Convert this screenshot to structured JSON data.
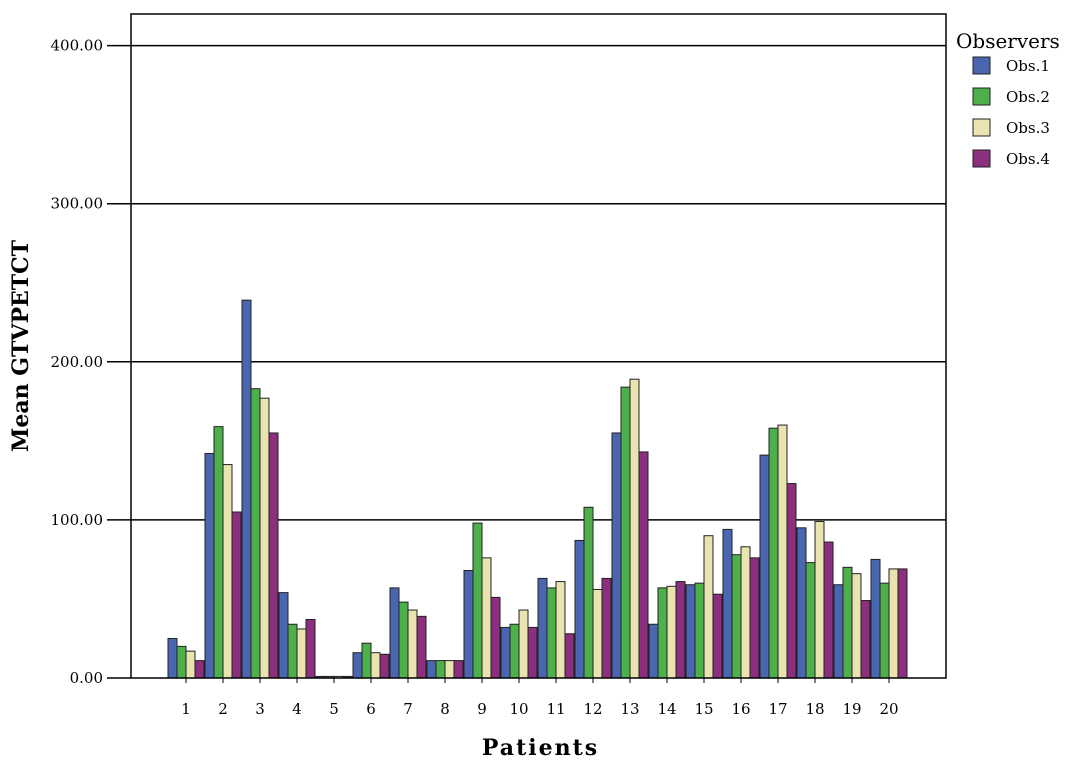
{
  "chart_data": {
    "type": "bar",
    "title": "",
    "xlabel": "Patients",
    "ylabel": "Mean GTVPETCT",
    "ylim": [
      0,
      420
    ],
    "yticks": [
      0,
      100,
      200,
      300,
      400
    ],
    "ytick_labels": [
      "0.00",
      "100.00",
      "200.00",
      "300.00",
      "400.00"
    ],
    "grid": "horizontal",
    "legend_position": "right",
    "legend_title": "Observers",
    "categories": [
      "1",
      "2",
      "3",
      "4",
      "5",
      "6",
      "7",
      "8",
      "9",
      "10",
      "11",
      "12",
      "13",
      "14",
      "15",
      "16",
      "17",
      "18",
      "19",
      "20"
    ],
    "series": [
      {
        "name": "Obs.1",
        "color": "#4a66b0",
        "values": [
          25,
          142,
          239,
          54,
          1,
          16,
          57,
          11,
          68,
          32,
          63,
          87,
          155,
          34,
          59,
          94,
          141,
          95,
          59,
          75
        ]
      },
      {
        "name": "Obs.2",
        "color": "#4db04a",
        "values": [
          20,
          159,
          183,
          34,
          1,
          22,
          48,
          11,
          98,
          34,
          57,
          108,
          184,
          57,
          60,
          78,
          158,
          73,
          70,
          60
        ]
      },
      {
        "name": "Obs.3",
        "color": "#e9e3b0",
        "values": [
          17,
          135,
          177,
          31,
          1,
          16,
          43,
          11,
          76,
          43,
          61,
          56,
          189,
          58,
          90,
          83,
          160,
          99,
          66,
          69
        ]
      },
      {
        "name": "Obs.4",
        "color": "#8b2f7e",
        "values": [
          11,
          105,
          155,
          37,
          1,
          15,
          39,
          11,
          51,
          32,
          28,
          63,
          143,
          61,
          53,
          76,
          123,
          86,
          49,
          69
        ]
      }
    ]
  }
}
